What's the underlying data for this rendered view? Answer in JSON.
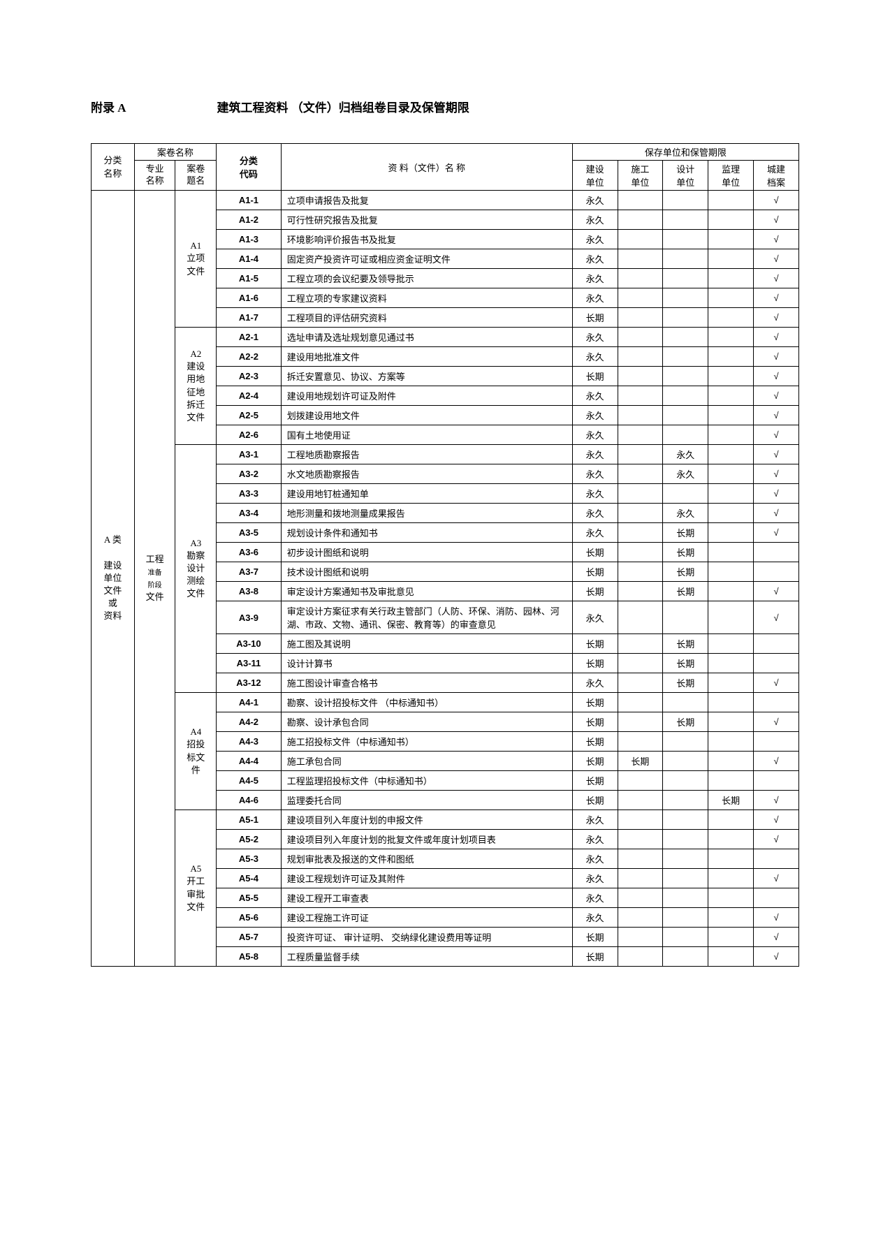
{
  "header": {
    "appendix": "附录 A",
    "title": "建筑工程资料 （文件）归档组卷目录及保管期限"
  },
  "tableHeader": {
    "catName": "分类\n名称",
    "volName": "案卷名称",
    "profName": "专业\n名称",
    "topicName": "案卷\n题名",
    "catCode": "分类\n代码",
    "docName": "资 料（文件）名  称",
    "storage": "保存单位和保管期限",
    "units": [
      "建设\n单位",
      "施工\n单位",
      "设计\n单位",
      "监理\n单位",
      "城建\n档案"
    ]
  },
  "category": {
    "label": "A 类\n\n建设\n单位\n文件\n或\n资料",
    "prof": "工程\n准备\n阶段\n文件"
  },
  "groups": [
    {
      "label": "A1\n立项\n文件",
      "rows": [
        {
          "code": "A1-1",
          "name": "立项申请报告及批复",
          "u": [
            "永久",
            "",
            "",
            "",
            "√"
          ]
        },
        {
          "code": "A1-2",
          "name": "可行性研究报告及批复",
          "u": [
            "永久",
            "",
            "",
            "",
            "√"
          ]
        },
        {
          "code": "A1-3",
          "name": "环境影响评价报告书及批复",
          "u": [
            "永久",
            "",
            "",
            "",
            "√"
          ]
        },
        {
          "code": "A1-4",
          "name": "固定资产投资许可证或相应资金证明文件",
          "u": [
            "永久",
            "",
            "",
            "",
            "√"
          ]
        },
        {
          "code": "A1-5",
          "name": "工程立项的会议纪要及领导批示",
          "u": [
            "永久",
            "",
            "",
            "",
            "√"
          ]
        },
        {
          "code": "A1-6",
          "name": "工程立项的专家建议资料",
          "u": [
            "永久",
            "",
            "",
            "",
            "√"
          ]
        },
        {
          "code": "A1-7",
          "name": "工程项目的评估研究资料",
          "u": [
            "长期",
            "",
            "",
            "",
            "√"
          ]
        }
      ]
    },
    {
      "label": "A2\n建设\n用地\n征地\n拆迁\n文件",
      "rows": [
        {
          "code": "A2-1",
          "name": "选址申请及选址规划意见通过书",
          "u": [
            "永久",
            "",
            "",
            "",
            "√"
          ]
        },
        {
          "code": "A2-2",
          "name": "建设用地批准文件",
          "u": [
            "永久",
            "",
            "",
            "",
            "√"
          ]
        },
        {
          "code": "A2-3",
          "name": "拆迁安置意见、协议、方案等",
          "u": [
            "长期",
            "",
            "",
            "",
            "√"
          ]
        },
        {
          "code": "A2-4",
          "name": "建设用地规划许可证及附件",
          "u": [
            "永久",
            "",
            "",
            "",
            "√"
          ]
        },
        {
          "code": "A2-5",
          "name": "划拨建设用地文件",
          "u": [
            "永久",
            "",
            "",
            "",
            "√"
          ]
        },
        {
          "code": "A2-6",
          "name": "国有土地使用证",
          "u": [
            "永久",
            "",
            "",
            "",
            "√"
          ]
        }
      ]
    },
    {
      "label": "A3\n勘察\n设计\n测绘\n文件",
      "rows": [
        {
          "code": "A3-1",
          "name": "工程地质勘察报告",
          "u": [
            "永久",
            "",
            "永久",
            "",
            "√"
          ]
        },
        {
          "code": "A3-2",
          "name": "水文地质勘察报告",
          "u": [
            "永久",
            "",
            "永久",
            "",
            "√"
          ]
        },
        {
          "code": "A3-3",
          "name": "建设用地钉桩通知单",
          "u": [
            "永久",
            "",
            "",
            "",
            "√"
          ]
        },
        {
          "code": "A3-4",
          "name": "地形测量和拨地测量成果报告",
          "u": [
            "永久",
            "",
            "永久",
            "",
            "√"
          ]
        },
        {
          "code": "A3-5",
          "name": "规划设计条件和通知书",
          "u": [
            "永久",
            "",
            "长期",
            "",
            "√"
          ]
        },
        {
          "code": "A3-6",
          "name": "初步设计图纸和说明",
          "u": [
            "长期",
            "",
            "长期",
            "",
            ""
          ]
        },
        {
          "code": "A3-7",
          "name": "技术设计图纸和说明",
          "u": [
            "长期",
            "",
            "长期",
            "",
            ""
          ]
        },
        {
          "code": "A3-8",
          "name": "审定设计方案通知书及审批意见",
          "u": [
            "长期",
            "",
            "长期",
            "",
            "√"
          ]
        },
        {
          "code": "A3-9",
          "name": "审定设计方案征求有关行政主管部门（人防、环保、消防、园林、河湖、市政、文物、通讯、保密、教育等）的审查意见",
          "u": [
            "永久",
            "",
            "",
            "",
            "√"
          ]
        },
        {
          "code": "A3-10",
          "name": "施工图及其说明",
          "u": [
            "长期",
            "",
            "长期",
            "",
            ""
          ]
        },
        {
          "code": "A3-11",
          "name": "设计计算书",
          "u": [
            "长期",
            "",
            "长期",
            "",
            ""
          ]
        },
        {
          "code": "A3-12",
          "name": "施工图设计审查合格书",
          "u": [
            "永久",
            "",
            "长期",
            "",
            "√"
          ]
        }
      ]
    },
    {
      "label": "A4\n招投\n标文\n件",
      "rows": [
        {
          "code": "A4-1",
          "name": "勘察、设计招投标文件 （中标通知书）",
          "u": [
            "长期",
            "",
            "",
            "",
            ""
          ]
        },
        {
          "code": "A4-2",
          "name": "勘察、设计承包合同",
          "u": [
            "长期",
            "",
            "长期",
            "",
            "√"
          ]
        },
        {
          "code": "A4-3",
          "name": "施工招投标文件（中标通知书）",
          "u": [
            "长期",
            "",
            "",
            "",
            ""
          ]
        },
        {
          "code": "A4-4",
          "name": "施工承包合同",
          "u": [
            "长期",
            "长期",
            "",
            "",
            "√"
          ]
        },
        {
          "code": "A4-5",
          "name": "工程监理招投标文件（中标通知书）",
          "u": [
            "长期",
            "",
            "",
            "",
            ""
          ]
        },
        {
          "code": "A4-6",
          "name": "监理委托合同",
          "u": [
            "长期",
            "",
            "",
            "长期",
            "√"
          ]
        }
      ]
    },
    {
      "label": "A5\n开工\n审批\n文件",
      "rows": [
        {
          "code": "A5-1",
          "name": "建设项目列入年度计划的申报文件",
          "u": [
            "永久",
            "",
            "",
            "",
            "√"
          ]
        },
        {
          "code": "A5-2",
          "name": "建设项目列入年度计划的批复文件或年度计划项目表",
          "u": [
            "永久",
            "",
            "",
            "",
            "√"
          ]
        },
        {
          "code": "A5-3",
          "name": "规划审批表及报送的文件和图纸",
          "u": [
            "永久",
            "",
            "",
            "",
            ""
          ]
        },
        {
          "code": "A5-4",
          "name": "建设工程规划许可证及其附件",
          "u": [
            "永久",
            "",
            "",
            "",
            "√"
          ]
        },
        {
          "code": "A5-5",
          "name": "建设工程开工审查表",
          "u": [
            "永久",
            "",
            "",
            "",
            ""
          ]
        },
        {
          "code": "A5-6",
          "name": "建设工程施工许可证",
          "u": [
            "永久",
            "",
            "",
            "",
            "√"
          ]
        },
        {
          "code": "A5-7",
          "name": "投资许可证、 审计证明、 交纳绿化建设费用等证明",
          "u": [
            "长期",
            "",
            "",
            "",
            "√"
          ]
        },
        {
          "code": "A5-8",
          "name": "工程质量监督手续",
          "u": [
            "长期",
            "",
            "",
            "",
            "√"
          ]
        }
      ]
    }
  ],
  "style": {
    "pageWidth": 1274,
    "pageHeight": 1804,
    "borderColor": "#000000",
    "background": "#ffffff",
    "fontSize": 13,
    "headerFontSize": 17
  }
}
